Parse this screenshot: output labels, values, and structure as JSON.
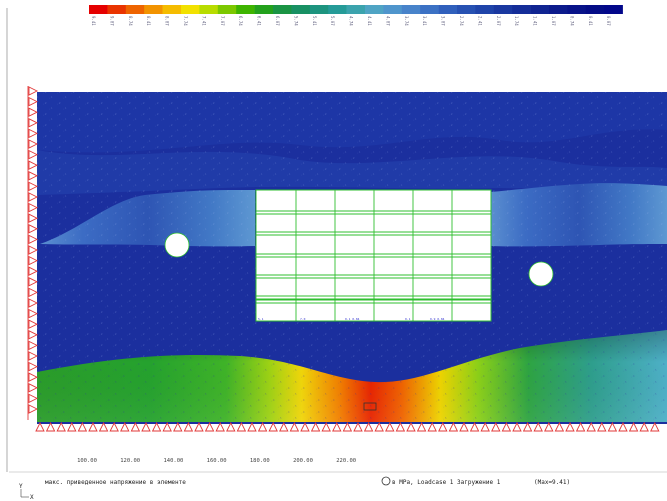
{
  "legend": {
    "colors": [
      "#e50000",
      "#e93400",
      "#ee6400",
      "#f29300",
      "#f5bc00",
      "#f2e100",
      "#b8dc00",
      "#7cc800",
      "#3eb400",
      "#23a11c",
      "#1a9444",
      "#189063",
      "#1d947f",
      "#259b98",
      "#3ba3ad",
      "#4fa4c4",
      "#4f95cc",
      "#4883ca",
      "#3b71c4",
      "#3060bc",
      "#2751b2",
      "#1f44a9",
      "#1a38a0",
      "#142d98",
      "#102491",
      "#0c1b8c",
      "#081389",
      "#040c86",
      "#02078a"
    ],
    "labels": [
      "9.41",
      "9.07",
      "8.74",
      "8.41",
      "8.07",
      "7.74",
      "7.41",
      "7.07",
      "6.74",
      "6.41",
      "6.07",
      "5.74",
      "5.41",
      "5.07",
      "4.74",
      "4.41",
      "4.07",
      "3.74",
      "3.41",
      "3.07",
      "2.74",
      "2.41",
      "2.07",
      "1.74",
      "1.41",
      "1.07",
      "0.74",
      "0.41",
      "0.07"
    ]
  },
  "axis": {
    "ticks": [
      {
        "value": "100.00",
        "x": 100
      },
      {
        "value": "120.00",
        "x": 120
      },
      {
        "value": "140.00",
        "x": 140
      },
      {
        "value": "160.00",
        "x": 160
      },
      {
        "value": "180.00",
        "x": 180
      },
      {
        "value": "200.00",
        "x": 200
      },
      {
        "value": "220.00",
        "x": 220
      }
    ]
  },
  "status": {
    "description": "макс. приведенное напряжение в элементе",
    "units": "в MPa, Loadcase 1 Загружение 1",
    "max": "(Max=9.41)"
  },
  "coord_axes": {
    "y": "Y",
    "x": "X"
  },
  "colors": {
    "background": "#ffffff",
    "deep_blue": "#1a2fa0",
    "support": "#e23a3a",
    "mesh": "#2fbf2f"
  }
}
